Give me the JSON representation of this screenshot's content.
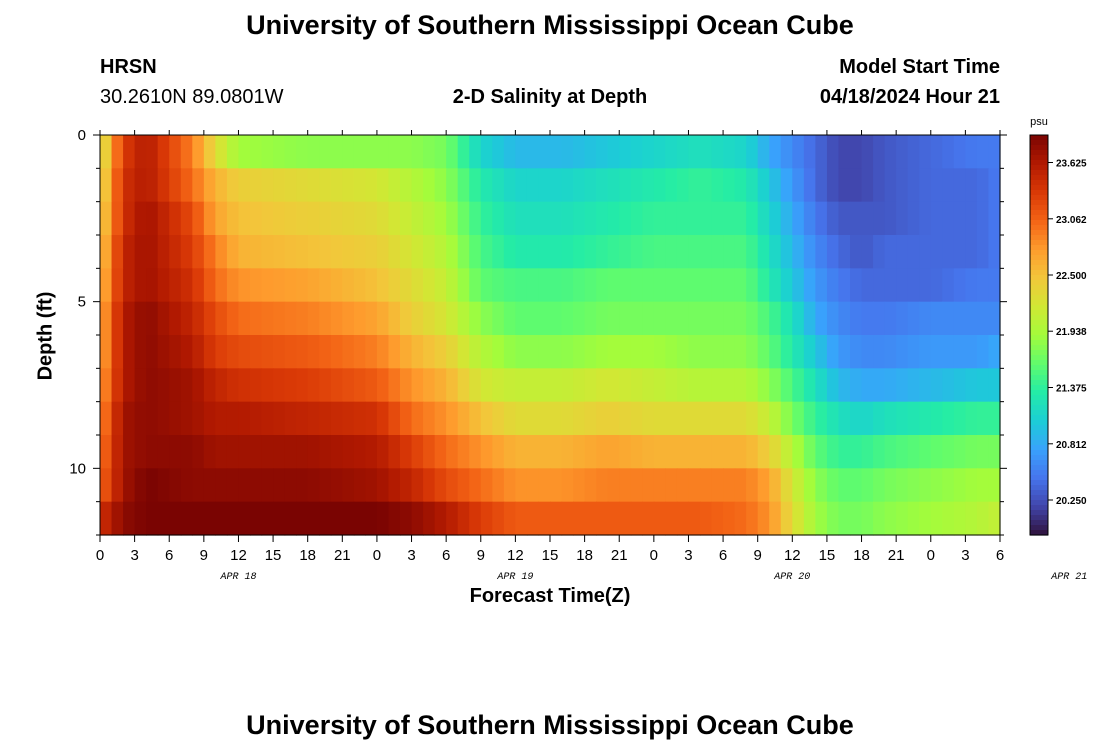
{
  "header": {
    "title": "University of Southern Mississippi Ocean Cube",
    "station": "HRSN",
    "coords": "30.2610N  89.0801W",
    "subtitle": "2-D Salinity at Depth",
    "start_label": "Model Start Time",
    "start_value": "04/18/2024 Hour 21"
  },
  "footer": {
    "title": "University of Southern Mississippi Ocean Cube"
  },
  "colors": {
    "background": "#ffffff",
    "axis": "#000000"
  },
  "chart_data": {
    "type": "heatmap",
    "title": "2-D Salinity at Depth",
    "xlabel": "Forecast Time(Z)",
    "ylabel": "Depth (ft)",
    "x_unit": "hours since 04/18/2024 00Z",
    "xlim": [
      0,
      78
    ],
    "ylim": [
      0,
      12
    ],
    "y_inverted": true,
    "x_tick_labels": [
      "0",
      "3",
      "6",
      "9",
      "12",
      "15",
      "18",
      "21",
      "0",
      "3",
      "6",
      "9",
      "12",
      "15",
      "18",
      "21",
      "0",
      "3",
      "6",
      "9",
      "12",
      "15",
      "18",
      "21",
      "0",
      "3",
      "6"
    ],
    "y_tick_labels": [
      "0",
      "5",
      "10"
    ],
    "date_labels": [
      "APR 18",
      "APR 19",
      "APR 20",
      "APR 21"
    ],
    "colorbar": {
      "unit": "psu",
      "ticks": [
        "23.625",
        "23.062",
        "22.500",
        "21.938",
        "21.375",
        "20.812",
        "20.250"
      ],
      "range": [
        19.9,
        23.9
      ],
      "colors": [
        "#30123b",
        "#4145ab",
        "#4675ed",
        "#39a2fc",
        "#1bcfd4",
        "#24eca6",
        "#61fc6c",
        "#a4fc3b",
        "#d1e834",
        "#f3c63a",
        "#fe9b2d",
        "#f36315",
        "#d93806",
        "#b11901",
        "#7a0402"
      ]
    },
    "depth_levels": [
      0.5,
      1.5,
      2.5,
      3.5,
      4.5,
      5.5,
      6.5,
      7.5,
      8.5,
      9.5,
      10.5,
      11.5
    ],
    "x_step_hours": 1,
    "anchor_hours": [
      0,
      2,
      4,
      8,
      10,
      12,
      18,
      24,
      27,
      30,
      33,
      36,
      40,
      44,
      48,
      52,
      56,
      58,
      60,
      62,
      64,
      66,
      68,
      72,
      76,
      78
    ],
    "anchor_values": [
      [
        22.1,
        23.3,
        23.6,
        22.9,
        22.3,
        21.9,
        21.8,
        21.8,
        21.8,
        21.7,
        21.1,
        20.9,
        20.9,
        21.0,
        21.1,
        21.2,
        21.1,
        20.8,
        20.6,
        20.4,
        20.2,
        20.2,
        20.3,
        20.4,
        20.5,
        20.5
      ],
      [
        22.2,
        23.4,
        23.6,
        23.0,
        22.6,
        22.4,
        22.3,
        22.2,
        22.0,
        21.8,
        21.3,
        21.1,
        21.1,
        21.2,
        21.3,
        21.4,
        21.3,
        21.0,
        20.7,
        20.4,
        20.2,
        20.2,
        20.3,
        20.4,
        20.4,
        20.5
      ],
      [
        22.3,
        23.4,
        23.7,
        23.2,
        22.7,
        22.5,
        22.4,
        22.3,
        22.1,
        21.9,
        21.4,
        21.2,
        21.2,
        21.3,
        21.4,
        21.4,
        21.4,
        21.1,
        20.8,
        20.5,
        20.3,
        20.3,
        20.3,
        20.4,
        20.4,
        20.5
      ],
      [
        22.4,
        23.5,
        23.7,
        23.3,
        22.9,
        22.6,
        22.5,
        22.4,
        22.2,
        22.0,
        21.5,
        21.3,
        21.3,
        21.4,
        21.5,
        21.5,
        21.5,
        21.2,
        20.9,
        20.6,
        20.4,
        20.3,
        20.4,
        20.4,
        20.4,
        20.5
      ],
      [
        22.5,
        23.5,
        23.7,
        23.4,
        23.0,
        22.8,
        22.7,
        22.5,
        22.3,
        22.1,
        21.6,
        21.5,
        21.5,
        21.6,
        21.6,
        21.6,
        21.6,
        21.3,
        21.0,
        20.7,
        20.5,
        20.4,
        20.4,
        20.4,
        20.5,
        20.5
      ],
      [
        22.6,
        23.6,
        23.8,
        23.5,
        23.2,
        23.0,
        22.9,
        22.7,
        22.4,
        22.2,
        21.8,
        21.6,
        21.6,
        21.7,
        21.7,
        21.7,
        21.7,
        21.5,
        21.2,
        20.8,
        20.6,
        20.5,
        20.5,
        20.6,
        20.6,
        20.6
      ],
      [
        22.6,
        23.6,
        23.8,
        23.6,
        23.3,
        23.2,
        23.1,
        22.9,
        22.6,
        22.4,
        22.0,
        21.8,
        21.8,
        21.9,
        21.9,
        21.8,
        21.8,
        21.6,
        21.3,
        21.0,
        20.7,
        20.6,
        20.6,
        20.7,
        20.7,
        20.8
      ],
      [
        22.7,
        23.6,
        23.8,
        23.7,
        23.5,
        23.4,
        23.3,
        23.1,
        22.8,
        22.6,
        22.2,
        22.1,
        22.1,
        22.2,
        22.1,
        22.0,
        22.0,
        21.8,
        21.5,
        21.2,
        20.9,
        20.8,
        20.8,
        20.9,
        21.0,
        21.0
      ],
      [
        22.8,
        23.7,
        23.8,
        23.7,
        23.6,
        23.6,
        23.5,
        23.4,
        23.0,
        22.8,
        22.5,
        22.3,
        22.3,
        22.4,
        22.3,
        22.3,
        22.3,
        22.1,
        21.7,
        21.4,
        21.2,
        21.1,
        21.2,
        21.3,
        21.4,
        21.4
      ],
      [
        22.9,
        23.7,
        23.8,
        23.8,
        23.7,
        23.7,
        23.7,
        23.6,
        23.3,
        23.0,
        22.8,
        22.6,
        22.6,
        22.7,
        22.6,
        22.6,
        22.6,
        22.4,
        22.0,
        21.6,
        21.4,
        21.4,
        21.5,
        21.6,
        21.7,
        21.7
      ],
      [
        23.0,
        23.7,
        23.9,
        23.8,
        23.8,
        23.8,
        23.8,
        23.7,
        23.5,
        23.2,
        23.0,
        22.8,
        22.8,
        22.9,
        22.9,
        22.9,
        22.9,
        22.7,
        22.2,
        21.8,
        21.6,
        21.6,
        21.7,
        21.8,
        21.9,
        21.9
      ],
      [
        23.4,
        23.8,
        23.9,
        23.9,
        23.9,
        23.9,
        23.9,
        23.9,
        23.8,
        23.6,
        23.3,
        23.1,
        23.1,
        23.1,
        23.1,
        23.1,
        23.0,
        22.8,
        22.3,
        21.9,
        21.7,
        21.7,
        21.8,
        21.9,
        22.0,
        22.1
      ]
    ]
  }
}
